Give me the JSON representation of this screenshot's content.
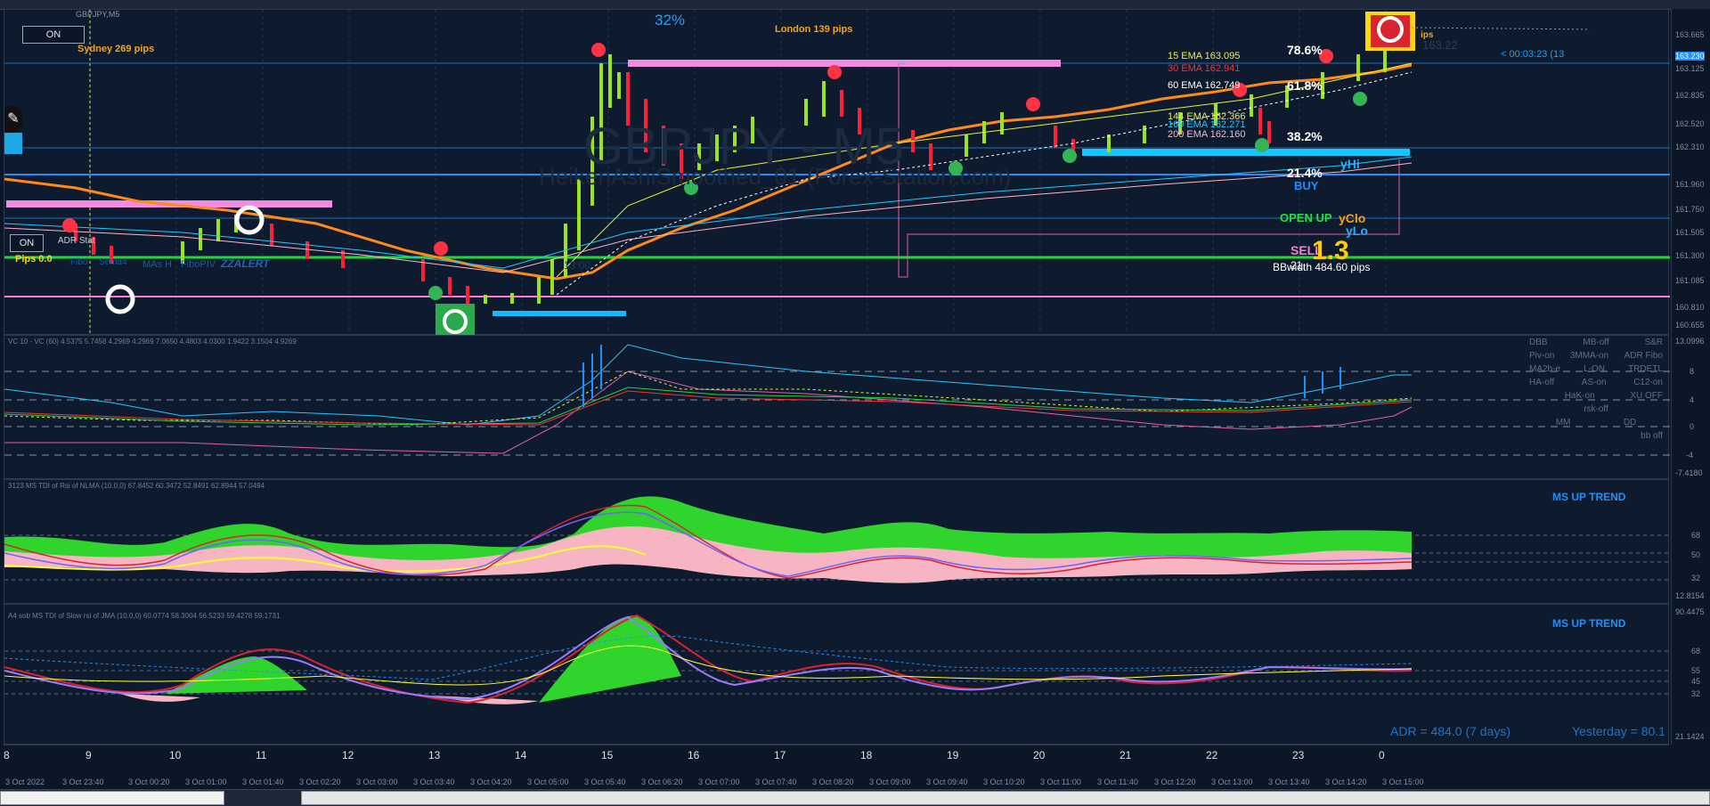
{
  "window": {
    "symbol_label": "GBPJPY,M5"
  },
  "main": {
    "on_button": "ON",
    "on_button_2": "ON",
    "watermark_symbol": "GBPJPY - M5",
    "watermark_sub": "HeikenAshiSmoothed_01 (Forex-Station.com)",
    "sydney": "Sydney 269 pips",
    "london": "London 139 pips",
    "top_pct": "32%",
    "pips_small": "ips",
    "timer": "< 00:03:23 (13",
    "price_1": "163.22",
    "adr_stat": "ADR Stat",
    "pips_zero": "Pips 0.0",
    "fibo_toolbar": [
      "Fibo",
      "Sema4",
      "MAs H",
      "FiboPIV",
      "ZZALERT"
    ],
    "hour_label": "13:00",
    "ema": [
      {
        "label": "15 EMA 163.095",
        "color": "#e9f230"
      },
      {
        "label": "30 EMA 162.941",
        "color": "#ff3030"
      },
      {
        "label": "60 EMA 162.749",
        "color": "#ffffff"
      },
      {
        "label": "144 EMA 162.366",
        "color": "#e9f230"
      },
      {
        "label": "169 EMA 162.271",
        "color": "#23c8ff"
      },
      {
        "label": "200 EMA 162.160",
        "color": "#ffb3c7"
      }
    ],
    "fib": [
      "78.6%",
      "61.8%",
      "38.2%",
      "21.4%"
    ],
    "yhi": "yHi",
    "buy": "BUY",
    "open_up": "OPEN UP",
    "yclose": "yClo",
    "ylow": "yLo",
    "sell": "SELL",
    "big_number": "1.3",
    "bbwidth": "BBwidth 484.60 pips",
    "ratio_value": "21."
  },
  "scale_prices": [
    "163.665",
    "163.230",
    "163.125",
    "162.835",
    "162.520",
    "162.310",
    "161.960",
    "161.750",
    "161.505",
    "161.300",
    "161.085",
    "160.810",
    "160.655"
  ],
  "vc": {
    "header": "VC 10 - VC (60) 4.5375 5.7458 4.2969 4.2969 7.0650 4.4803 4.0300 1.9422 3.1504 4.9269",
    "menu": [
      [
        "DBB",
        "MB-off",
        "S&R"
      ],
      [
        "Piv-on",
        "3MMA-on",
        "ADR Fibo"
      ],
      [
        "MA2b-e",
        "L-ON",
        "TRDETL"
      ],
      [
        "HA-off",
        "AS-on",
        "C12-on"
      ],
      [
        "",
        "HaK-on",
        "XU OFF"
      ],
      [
        "",
        "rsk-off",
        ""
      ],
      [
        "",
        "MM",
        "DD"
      ],
      [
        "",
        "",
        "bb off"
      ]
    ],
    "scale": [
      "13.0996",
      "8",
      "4",
      "0",
      "-4",
      "-7.4180"
    ]
  },
  "tdi1": {
    "header": "3123 MS TDI of Rsi of NLMA (10.0,0) 67.8452 60.3472 52.8491 62.8944 57.0494",
    "trend": "MS UP TREND",
    "scale": [
      "68",
      "50",
      "32",
      "12.8154"
    ]
  },
  "tdi2": {
    "header": "A4 sob MS TDI of Slow rsi of JMA (10.0,0) 60.0774 58.3004 56.5233 59.4278 59.1731",
    "trend": "MS UP TREND",
    "adr": "ADR = 484.0  (7 days)",
    "yesterday": "Yesterday = 80.1",
    "scale": [
      "90.4475",
      "68",
      "55",
      "45",
      "32",
      "21.1424"
    ]
  },
  "x_axis_hours": [
    "8",
    "9",
    "10",
    "11",
    "12",
    "13",
    "14",
    "15",
    "16",
    "17",
    "18",
    "19",
    "20",
    "21",
    "22",
    "23",
    "0"
  ],
  "x_axis_dates": [
    "3 Oct 2022",
    "3 Oct 23:40",
    "3 Oct 00:20",
    "3 Oct 01:00",
    "3 Oct 01:40",
    "3 Oct 02:20",
    "3 Oct 03:00",
    "3 Oct 03:40",
    "3 Oct 04:20",
    "3 Oct 05:00",
    "3 Oct 05:40",
    "3 Oct 06:20",
    "3 Oct 07:00",
    "3 Oct 07:40",
    "3 Oct 08:20",
    "3 Oct 09:00",
    "3 Oct 09:40",
    "3 Oct 10:20",
    "3 Oct 11:00",
    "3 Oct 11:40",
    "3 Oct 12:20",
    "3 Oct 13:00",
    "3 Oct 13:40",
    "3 Oct 14:20",
    "3 Oct 15:00"
  ]
}
